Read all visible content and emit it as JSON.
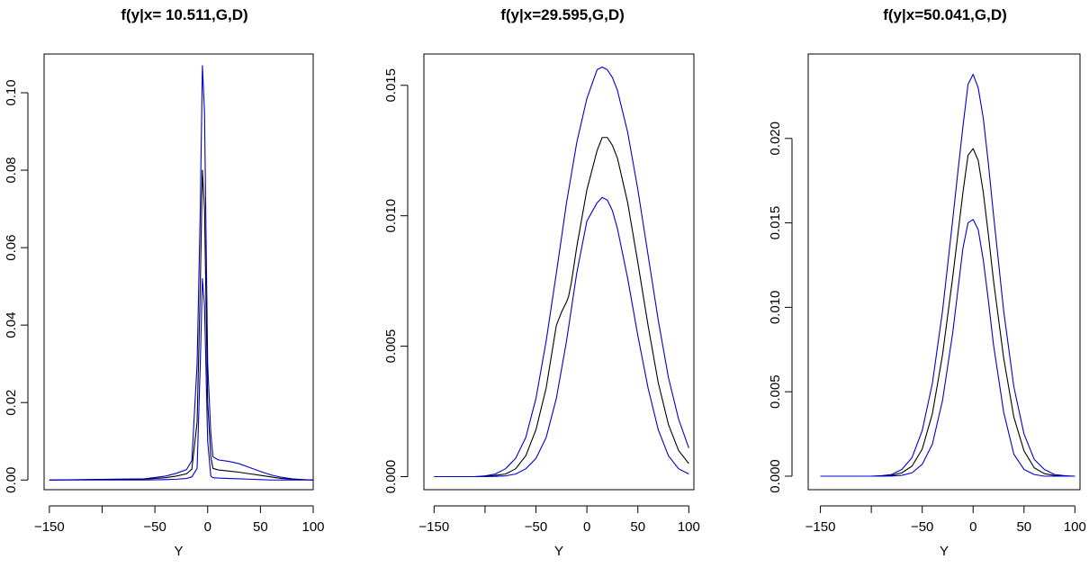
{
  "chart_data": [
    {
      "type": "line",
      "title": "f(y|x= 10.511,G,D)",
      "xlabel": "Y",
      "ylabel": "",
      "xlim": [
        -155,
        100
      ],
      "ylim": [
        -0.0025,
        0.11
      ],
      "xticks": [
        -150,
        -100,
        -50,
        0,
        50,
        100
      ],
      "xtick_labels": [
        "−150",
        "",
        "−50",
        "0",
        "50",
        "100"
      ],
      "yticks": [
        0,
        0.02,
        0.04,
        0.06,
        0.08,
        0.1
      ],
      "ytick_labels": [
        "0.00",
        "0.02",
        "0.04",
        "0.06",
        "0.08",
        "0.10"
      ],
      "series": [
        {
          "color": "#0000cc",
          "x": [
            -150,
            -60,
            -40,
            -30,
            -20,
            -15,
            -10,
            -7,
            -5,
            -3,
            0,
            3,
            5,
            10,
            20,
            30,
            40,
            50,
            60,
            70,
            80,
            90,
            100
          ],
          "y": [
            0,
            0.0003,
            0.001,
            0.0017,
            0.0027,
            0.005,
            0.03,
            0.07,
            0.107,
            0.095,
            0.03,
            0.012,
            0.006,
            0.0052,
            0.0048,
            0.0042,
            0.0032,
            0.0022,
            0.0013,
            0.0007,
            0.0003,
            0.0001,
            0
          ]
        },
        {
          "color": "#000000",
          "x": [
            -150,
            -60,
            -40,
            -30,
            -20,
            -15,
            -10,
            -7,
            -5,
            -3,
            0,
            3,
            5,
            10,
            20,
            30,
            40,
            50,
            60,
            70,
            80,
            90,
            100
          ],
          "y": [
            0,
            0.0002,
            0.0006,
            0.001,
            0.0016,
            0.0028,
            0.015,
            0.05,
            0.08,
            0.07,
            0.02,
            0.006,
            0.003,
            0.0026,
            0.0023,
            0.002,
            0.0016,
            0.0012,
            0.0008,
            0.0004,
            0.0002,
            0.0001,
            0
          ]
        },
        {
          "color": "#0000cc",
          "x": [
            -150,
            -60,
            -40,
            -30,
            -20,
            -15,
            -10,
            -7,
            -5,
            -3,
            0,
            3,
            5,
            10,
            20,
            30,
            40,
            50,
            60,
            70,
            80,
            90,
            100
          ],
          "y": [
            0,
            0,
            0.0001,
            0.0002,
            0.0004,
            0.0008,
            0.003,
            0.03,
            0.052,
            0.045,
            0.01,
            0.001,
            0.0006,
            0.0005,
            0.0004,
            0.0003,
            0.0002,
            0.0001,
            0,
            0,
            0,
            0,
            0
          ]
        }
      ]
    },
    {
      "type": "line",
      "title": "f(y|x=29.595,G,D)",
      "xlabel": "Y",
      "ylabel": "",
      "xlim": [
        -160,
        105
      ],
      "ylim": [
        -0.0005,
        0.0162
      ],
      "xticks": [
        -150,
        -100,
        -50,
        0,
        50,
        100
      ],
      "xtick_labels": [
        "−150",
        "",
        "−50",
        "0",
        "50",
        "100"
      ],
      "yticks": [
        0,
        0.005,
        0.01,
        0.015
      ],
      "ytick_labels": [
        "0.000",
        "0.005",
        "0.010",
        "0.015"
      ],
      "series": [
        {
          "color": "#0000cc",
          "x": [
            -150,
            -110,
            -100,
            -90,
            -80,
            -70,
            -60,
            -50,
            -40,
            -30,
            -20,
            -10,
            0,
            10,
            15,
            20,
            25,
            30,
            40,
            50,
            60,
            70,
            80,
            90,
            100
          ],
          "y": [
            0,
            0,
            3e-05,
            0.0001,
            0.0003,
            0.0007,
            0.0015,
            0.003,
            0.0052,
            0.0078,
            0.0105,
            0.0128,
            0.0145,
            0.0156,
            0.0157,
            0.0156,
            0.0153,
            0.0148,
            0.0132,
            0.011,
            0.0085,
            0.006,
            0.0038,
            0.0022,
            0.0011
          ]
        },
        {
          "color": "#000000",
          "x": [
            -150,
            -110,
            -100,
            -90,
            -80,
            -70,
            -60,
            -50,
            -40,
            -30,
            -25,
            -20,
            -18,
            -15,
            -10,
            0,
            10,
            15,
            20,
            25,
            30,
            40,
            50,
            60,
            70,
            80,
            90,
            100
          ],
          "y": [
            0,
            0,
            1e-05,
            5e-05,
            0.0001,
            0.0003,
            0.0008,
            0.0018,
            0.0034,
            0.0058,
            0.0063,
            0.0067,
            0.0069,
            0.0075,
            0.0088,
            0.011,
            0.0125,
            0.013,
            0.013,
            0.0127,
            0.0122,
            0.0105,
            0.0082,
            0.0058,
            0.0036,
            0.002,
            0.001,
            0.0005
          ]
        },
        {
          "color": "#0000cc",
          "x": [
            -150,
            -100,
            -90,
            -80,
            -70,
            -60,
            -50,
            -40,
            -30,
            -20,
            -10,
            0,
            10,
            15,
            20,
            25,
            30,
            40,
            50,
            60,
            70,
            80,
            90,
            100
          ],
          "y": [
            0,
            0,
            1e-05,
            3e-05,
            0.0001,
            0.0003,
            0.0007,
            0.0015,
            0.003,
            0.0052,
            0.0078,
            0.0098,
            0.0105,
            0.0107,
            0.0106,
            0.0102,
            0.0095,
            0.0076,
            0.0054,
            0.0034,
            0.0018,
            0.0008,
            0.0003,
            0.0001
          ]
        }
      ]
    },
    {
      "type": "line",
      "title": "f(y|x=50.041,G,D)",
      "xlabel": "Y",
      "ylabel": "",
      "xlim": [
        -162,
        105
      ],
      "ylim": [
        -0.0008,
        0.025
      ],
      "xticks": [
        -150,
        -100,
        -50,
        0,
        50,
        100
      ],
      "xtick_labels": [
        "−150",
        "",
        "−50",
        "0",
        "50",
        "100"
      ],
      "yticks": [
        0,
        0.005,
        0.01,
        0.015,
        0.02
      ],
      "ytick_labels": [
        "0.000",
        "0.005",
        "0.010",
        "0.015",
        "0.020"
      ],
      "series": [
        {
          "color": "#0000cc",
          "x": [
            -150,
            -100,
            -90,
            -80,
            -70,
            -60,
            -50,
            -40,
            -30,
            -20,
            -15,
            -10,
            -5,
            0,
            5,
            10,
            15,
            20,
            30,
            40,
            50,
            60,
            70,
            80,
            90,
            100
          ],
          "y": [
            0,
            0,
            3e-05,
            0.0001,
            0.0004,
            0.0011,
            0.0027,
            0.0055,
            0.0098,
            0.0152,
            0.018,
            0.0207,
            0.0232,
            0.0238,
            0.023,
            0.0212,
            0.0185,
            0.0155,
            0.0098,
            0.0053,
            0.0025,
            0.001,
            0.0004,
            0.0001,
            3e-05,
            0
          ]
        },
        {
          "color": "#000000",
          "x": [
            -150,
            -100,
            -90,
            -80,
            -70,
            -60,
            -50,
            -40,
            -30,
            -20,
            -15,
            -10,
            -5,
            0,
            5,
            10,
            15,
            20,
            30,
            40,
            50,
            60,
            70,
            80,
            90,
            100
          ],
          "y": [
            0,
            0,
            1e-05,
            5e-05,
            0.0002,
            0.0006,
            0.0016,
            0.0037,
            0.0072,
            0.0118,
            0.0143,
            0.0168,
            0.019,
            0.0194,
            0.0187,
            0.0168,
            0.0143,
            0.0116,
            0.007,
            0.0035,
            0.0015,
            0.0005,
            0.00015,
            4e-05,
            0,
            0
          ]
        },
        {
          "color": "#0000cc",
          "x": [
            -150,
            -100,
            -90,
            -80,
            -70,
            -60,
            -50,
            -40,
            -30,
            -20,
            -15,
            -10,
            -5,
            0,
            5,
            10,
            15,
            20,
            30,
            40,
            50,
            60,
            70,
            80,
            90,
            100
          ],
          "y": [
            0,
            0,
            0,
            1e-05,
            5e-05,
            0.0002,
            0.0007,
            0.0019,
            0.0045,
            0.0085,
            0.011,
            0.0135,
            0.015,
            0.0152,
            0.0146,
            0.0128,
            0.0104,
            0.0078,
            0.0038,
            0.0013,
            0.0004,
            0.0001,
            0,
            0,
            0,
            0
          ]
        }
      ]
    }
  ]
}
